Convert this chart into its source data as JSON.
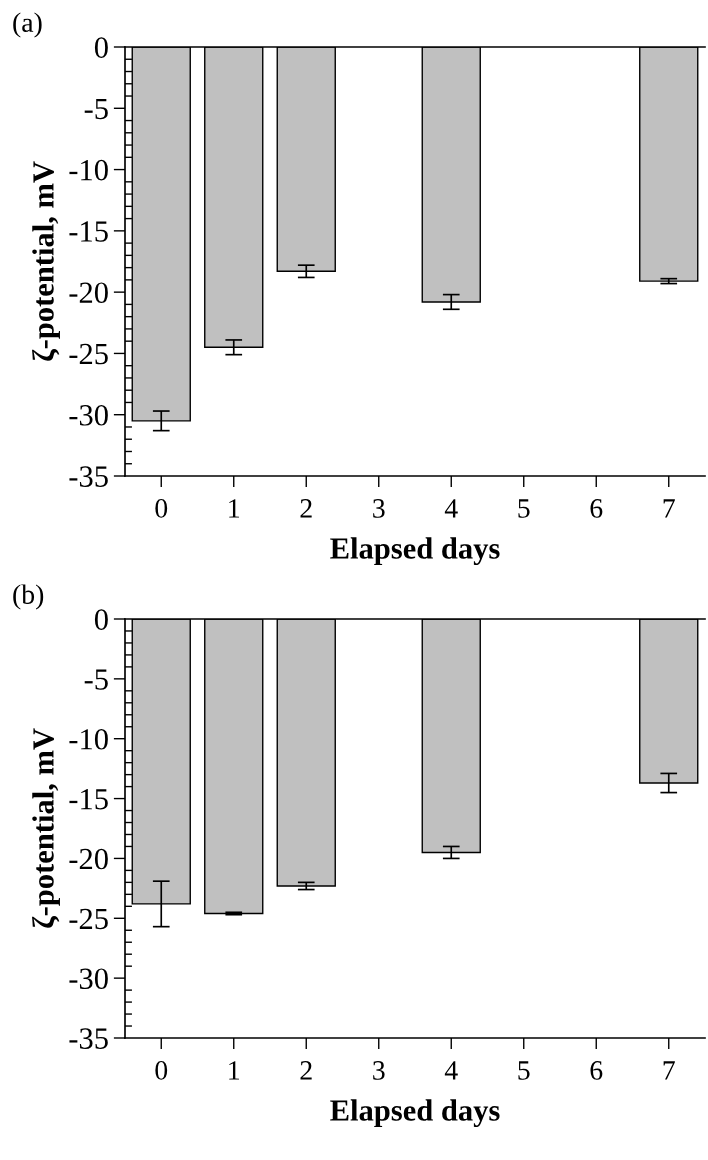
{
  "chart_data": [
    {
      "type": "bar",
      "title": "(a)",
      "xlabel": "Elapsed days",
      "ylabel": "ζ-potential, mV",
      "categories": [
        "0",
        "1",
        "2",
        "3",
        "4",
        "5",
        "6",
        "7"
      ],
      "values": [
        -30.5,
        -24.5,
        -18.3,
        null,
        -20.8,
        null,
        null,
        -19.1
      ],
      "errors": [
        0.8,
        0.6,
        0.5,
        null,
        0.6,
        null,
        null,
        0.2
      ],
      "color": "#c0c0c0",
      "ylim": [
        -35,
        0
      ],
      "yticks": [
        -35,
        -30,
        -25,
        -20,
        -15,
        -10,
        -5,
        0
      ],
      "grid": false,
      "legend": false
    },
    {
      "type": "bar",
      "title": "(b)",
      "xlabel": "Elapsed days",
      "ylabel": "ζ-potential, mV",
      "categories": [
        "0",
        "1",
        "2",
        "3",
        "4",
        "5",
        "6",
        "7"
      ],
      "values": [
        -23.8,
        -24.6,
        -22.3,
        null,
        -19.5,
        null,
        null,
        -13.7
      ],
      "errors": [
        1.9,
        0.1,
        0.3,
        null,
        0.5,
        null,
        null,
        0.8
      ],
      "color": "#c0c0c0",
      "ylim": [
        -35,
        0
      ],
      "yticks": [
        -35,
        -30,
        -25,
        -20,
        -15,
        -10,
        -5,
        0
      ],
      "grid": false,
      "legend": false
    }
  ]
}
